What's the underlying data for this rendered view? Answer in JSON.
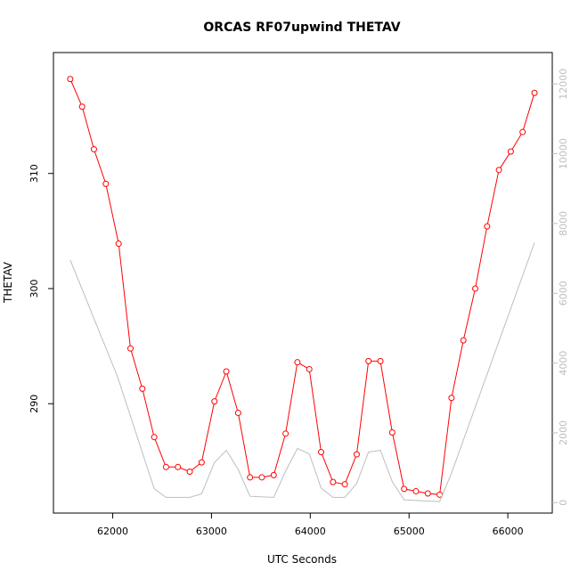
{
  "chart_data": {
    "type": "line",
    "title": "ORCAS RF07upwind THETAV",
    "xlabel": "UTC Seconds",
    "ylabel": "THETAV",
    "xlim": [
      61400,
      66450
    ],
    "ylim": [
      280.5,
      320.5
    ],
    "y2lim": [
      -300,
      12900
    ],
    "xticks": [
      "62000",
      "63000",
      "64000",
      "65000",
      "66000"
    ],
    "yticks": [
      "290",
      "300",
      "310"
    ],
    "y2ticks": [
      "0",
      "2000",
      "4000",
      "6000",
      "8000",
      "10000",
      "12000"
    ],
    "grid": false,
    "legend": "none",
    "colors": {
      "primary": "#ff0000",
      "secondary": "#bebebe"
    },
    "series": [
      {
        "axis": "left",
        "style": "line+circle",
        "x": [
          61570,
          61690,
          61810,
          61930,
          62060,
          62180,
          62300,
          62420,
          62540,
          62660,
          62780,
          62900,
          63030,
          63150,
          63270,
          63390,
          63510,
          63630,
          63750,
          63870,
          63990,
          64110,
          64230,
          64350,
          64470,
          64590,
          64710,
          64830,
          64950,
          65070,
          65190,
          65310,
          65430,
          65550,
          65670,
          65790,
          65910,
          66030,
          66150,
          66270
        ],
        "values": [
          318.2,
          315.8,
          312.1,
          309.1,
          303.9,
          294.8,
          291.3,
          287.1,
          284.5,
          284.5,
          284.1,
          284.9,
          290.2,
          292.8,
          289.2,
          283.6,
          283.6,
          283.8,
          287.4,
          293.6,
          293.0,
          285.8,
          283.2,
          283.0,
          285.6,
          293.7,
          293.7,
          287.5,
          282.6,
          282.4,
          282.2,
          282.1,
          290.5,
          295.5,
          300.0,
          305.4,
          310.3,
          311.9,
          313.6,
          317.0
        ]
      },
      {
        "axis": "right",
        "style": "line",
        "x": [
          61570,
          62050,
          62420,
          62540,
          62780,
          62900,
          63030,
          63150,
          63270,
          63390,
          63630,
          63750,
          63870,
          63990,
          64110,
          64230,
          64350,
          64470,
          64590,
          64710,
          64830,
          64950,
          65310,
          65430,
          66270
        ],
        "values": [
          6950,
          3600,
          400,
          150,
          150,
          250,
          1150,
          1500,
          950,
          180,
          150,
          900,
          1550,
          1400,
          420,
          150,
          150,
          550,
          1450,
          1500,
          600,
          80,
          30,
          850,
          7450
        ]
      }
    ]
  }
}
